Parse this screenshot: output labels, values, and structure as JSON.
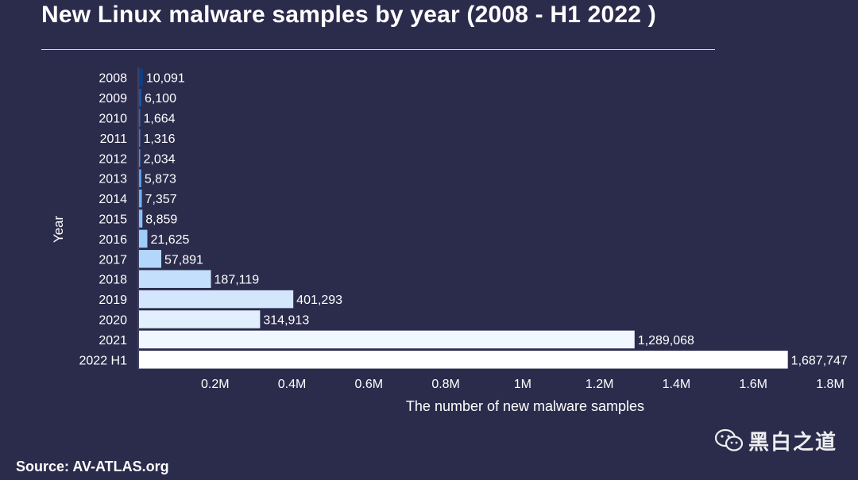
{
  "title": "New Linux malware samples by year (2008 - H1 2022 )",
  "source": "Source: AV-ATLAS.org",
  "watermark": {
    "text": "黑白之道",
    "icon": "wechat-icon"
  },
  "colors": {
    "background": "#2b2b4c",
    "bar_gradient": [
      "#0e3f86",
      "#2f7fe0",
      "#64aef2",
      "#a9d2fa",
      "#d6e8fc",
      "#ffffff"
    ]
  },
  "chart_data": {
    "type": "bar",
    "orientation": "horizontal",
    "title": "New Linux malware samples by year (2008 - H1 2022 )",
    "xlabel": "The number of new malware samples",
    "ylabel": "Year",
    "categories": [
      "2008",
      "2009",
      "2010",
      "2011",
      "2012",
      "2013",
      "2014",
      "2015",
      "2016",
      "2017",
      "2018",
      "2019",
      "2020",
      "2021",
      "2022 H1"
    ],
    "values": [
      10091,
      6100,
      1664,
      1316,
      2034,
      5873,
      7357,
      8859,
      21625,
      57891,
      187119,
      401293,
      314913,
      1289068,
      1687747
    ],
    "value_labels": [
      "10,091",
      "6,100",
      "1,664",
      "1,316",
      "2,034",
      "5,873",
      "7,357",
      "8,859",
      "21,625",
      "57,891",
      "187,119",
      "401,293",
      "314,913",
      "1,289,068",
      "1,687,747"
    ],
    "xlim": [
      0,
      1800000
    ],
    "xticks": [
      200000,
      400000,
      600000,
      800000,
      1000000,
      1200000,
      1400000,
      1600000,
      1800000
    ],
    "xtick_labels": [
      "0.2M",
      "0.4M",
      "0.6M",
      "0.8M",
      "1M",
      "1.2M",
      "1.4M",
      "1.6M",
      "1.8M"
    ],
    "grid": false,
    "legend": "none"
  }
}
